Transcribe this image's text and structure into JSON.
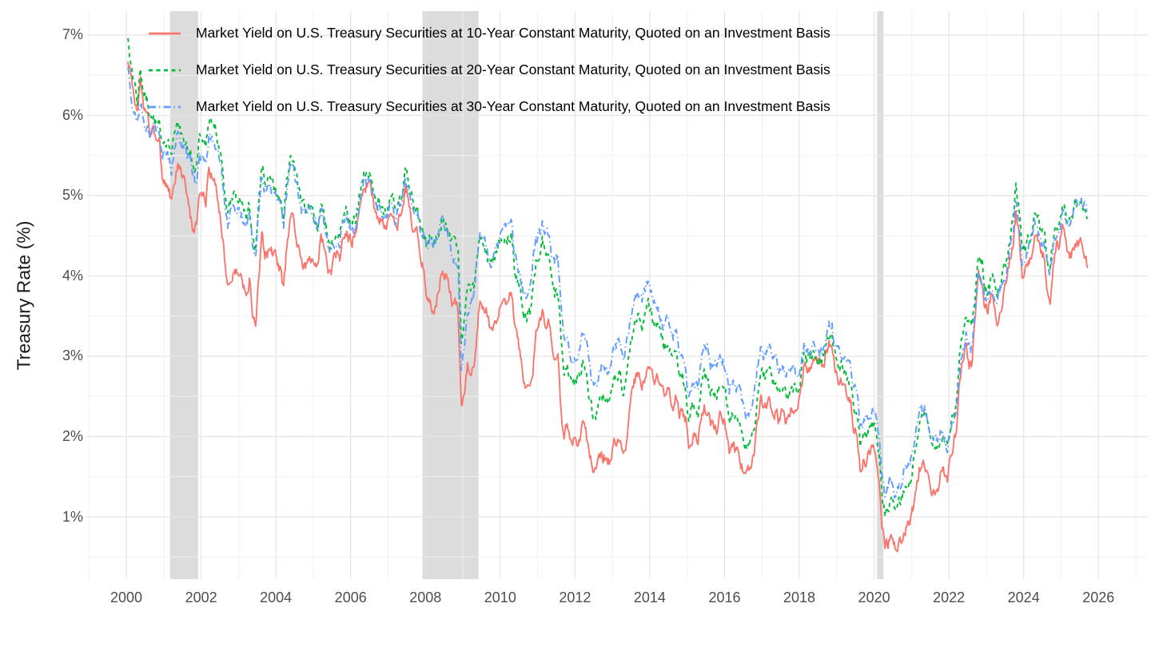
{
  "y_axis": {
    "title": "Treasury Rate (%)",
    "tick_labels": [
      "7%",
      "6%",
      "5%",
      "4%",
      "3%",
      "2%",
      "1%"
    ],
    "tick_values": [
      7,
      6,
      5,
      4,
      3,
      2,
      1
    ],
    "minor_values": [
      6.5,
      5.5,
      4.5,
      3.5,
      2.5,
      1.5,
      0.5
    ],
    "range": [
      0.224,
      7.298
    ]
  },
  "x_axis": {
    "tick_labels": [
      "2000",
      "2002",
      "2004",
      "2006",
      "2008",
      "2010",
      "2012",
      "2014",
      "2016",
      "2018",
      "2020",
      "2022",
      "2024",
      "2026"
    ],
    "tick_values": [
      2000,
      2002,
      2004,
      2006,
      2008,
      2010,
      2012,
      2014,
      2016,
      2018,
      2020,
      2022,
      2024,
      2026
    ],
    "minor_values": [
      1999,
      2001,
      2003,
      2005,
      2007,
      2009,
      2011,
      2013,
      2015,
      2017,
      2019,
      2021,
      2023,
      2025,
      2027
    ],
    "range": [
      1998.93,
      2027.32
    ]
  },
  "recession_bands": [
    {
      "start": 2001.17,
      "end": 2001.92
    },
    {
      "start": 2007.92,
      "end": 2009.42
    },
    {
      "start": 2020.08,
      "end": 2020.25
    }
  ],
  "style": {
    "background": "#ffffff",
    "band_color": "#dcdcdc",
    "grid_major_color": "#e4e4e4",
    "grid_minor_color": "#f0f0f0",
    "tick_label_color": "#4d4d4d",
    "axis_title_color": "#1a1a1a",
    "legend_text_color": "#000000"
  },
  "chart_data": {
    "type": "line",
    "title": "",
    "xlabel": "",
    "ylabel": "Treasury Rate (%)",
    "x_start_year": 2000,
    "x_step_months": 1,
    "x_end_year": 2025.75,
    "ylim": [
      0.224,
      7.298
    ],
    "xlim": [
      1998.93,
      2027.32
    ],
    "grid": "on",
    "legend_position": "top-left-inside",
    "series": [
      {
        "name": "Market Yield on U.S. Treasury Securities at 10-Year Constant Maturity, Quoted on an Investment Basis",
        "color": "#F8766D",
        "linetype": "solid",
        "values": [
          6.66,
          6.52,
          6.26,
          5.99,
          6.44,
          6.1,
          6.05,
          5.83,
          5.8,
          5.74,
          5.72,
          5.24,
          5.16,
          5.1,
          4.89,
          5.14,
          5.39,
          5.28,
          5.24,
          4.97,
          4.73,
          4.57,
          4.65,
          5.09,
          5.04,
          4.91,
          5.28,
          5.21,
          5.16,
          4.93,
          4.65,
          4.26,
          3.87,
          3.94,
          4.05,
          4.03,
          4.05,
          3.9,
          3.81,
          3.96,
          3.57,
          3.33,
          3.98,
          4.45,
          4.27,
          4.29,
          4.3,
          4.27,
          4.15,
          4.08,
          3.83,
          4.35,
          4.72,
          4.73,
          4.5,
          4.28,
          4.13,
          4.1,
          4.19,
          4.23,
          4.22,
          4.17,
          4.5,
          4.34,
          4.14,
          4.0,
          4.18,
          4.26,
          4.2,
          4.46,
          4.54,
          4.47,
          4.42,
          4.57,
          4.72,
          4.99,
          5.11,
          5.11,
          5.09,
          4.88,
          4.72,
          4.73,
          4.6,
          4.56,
          4.76,
          4.72,
          4.56,
          4.69,
          4.75,
          5.1,
          5.0,
          4.67,
          4.52,
          4.53,
          4.15,
          4.1,
          3.74,
          3.74,
          3.51,
          3.68,
          3.88,
          4.1,
          4.01,
          3.89,
          3.69,
          3.81,
          3.53,
          2.42,
          2.52,
          2.87,
          2.82,
          2.93,
          3.29,
          3.72,
          3.56,
          3.59,
          3.4,
          3.39,
          3.4,
          3.59,
          3.73,
          3.69,
          3.73,
          3.85,
          3.42,
          3.2,
          3.01,
          2.7,
          2.65,
          2.54,
          2.76,
          3.29,
          3.39,
          3.58,
          3.41,
          3.46,
          3.17,
          3.0,
          3.0,
          2.3,
          1.98,
          2.15,
          2.01,
          1.98,
          1.97,
          1.97,
          2.17,
          2.05,
          1.8,
          1.62,
          1.53,
          1.68,
          1.72,
          1.75,
          1.65,
          1.72,
          1.91,
          1.98,
          1.96,
          1.76,
          1.93,
          2.3,
          2.58,
          2.74,
          2.81,
          2.62,
          2.72,
          2.9,
          2.86,
          2.71,
          2.72,
          2.71,
          2.56,
          2.6,
          2.54,
          2.42,
          2.53,
          2.3,
          2.33,
          2.21,
          1.88,
          1.98,
          2.04,
          1.94,
          2.2,
          2.36,
          2.32,
          2.17,
          2.17,
          2.07,
          2.26,
          2.24,
          2.09,
          1.78,
          1.89,
          1.81,
          1.81,
          1.64,
          1.5,
          1.56,
          1.63,
          1.76,
          2.14,
          2.49,
          2.43,
          2.42,
          2.48,
          2.3,
          2.3,
          2.19,
          2.32,
          2.21,
          2.2,
          2.36,
          2.35,
          2.4,
          2.58,
          2.86,
          2.84,
          2.87,
          2.98,
          2.91,
          2.89,
          2.89,
          3.0,
          3.15,
          3.12,
          2.83,
          2.71,
          2.68,
          2.57,
          2.53,
          2.4,
          2.07,
          2.06,
          1.63,
          1.7,
          1.71,
          1.81,
          1.86,
          1.76,
          1.5,
          0.87,
          0.66,
          0.67,
          0.73,
          0.62,
          0.65,
          0.68,
          0.79,
          0.87,
          0.93,
          1.08,
          1.26,
          1.61,
          1.64,
          1.62,
          1.52,
          1.32,
          1.28,
          1.37,
          1.58,
          1.56,
          1.47,
          1.76,
          1.93,
          2.13,
          2.75,
          2.9,
          3.14,
          2.9,
          2.9,
          3.52,
          3.98,
          3.89,
          3.62,
          3.53,
          3.75,
          3.66,
          3.46,
          3.57,
          3.75,
          3.9,
          4.17,
          4.38,
          4.8,
          4.5,
          4.02,
          4.06,
          4.21,
          4.21,
          4.54,
          4.48,
          4.31,
          4.25,
          3.87,
          3.72,
          4.1,
          4.36,
          4.39,
          4.63,
          4.45,
          4.28,
          4.28,
          4.42,
          4.38,
          4.39,
          4.26,
          4.12
        ]
      },
      {
        "name": "Market Yield on U.S. Treasury Securities at 20-Year Constant Maturity, Quoted on an Investment Basis",
        "color": "#00BA38",
        "linetype": "dashed",
        "values": [
          6.9,
          6.54,
          6.38,
          6.18,
          6.52,
          6.28,
          6.2,
          6.02,
          5.97,
          5.91,
          5.89,
          5.64,
          5.65,
          5.62,
          5.49,
          5.78,
          5.92,
          5.82,
          5.75,
          5.58,
          5.53,
          5.34,
          5.33,
          5.76,
          5.69,
          5.61,
          5.93,
          5.86,
          5.82,
          5.65,
          5.46,
          5.08,
          4.76,
          4.93,
          4.96,
          4.92,
          4.94,
          4.81,
          4.74,
          4.91,
          4.52,
          4.34,
          4.92,
          5.39,
          5.21,
          5.21,
          5.17,
          5.11,
          4.97,
          4.94,
          4.72,
          5.16,
          5.46,
          5.45,
          5.24,
          5.07,
          4.89,
          4.85,
          4.89,
          4.88,
          4.77,
          4.61,
          4.89,
          4.75,
          4.56,
          4.35,
          4.48,
          4.53,
          4.51,
          4.74,
          4.83,
          4.73,
          4.65,
          4.73,
          4.91,
          5.22,
          5.35,
          5.29,
          5.25,
          5.08,
          4.93,
          4.94,
          4.78,
          4.78,
          4.95,
          4.93,
          4.81,
          4.95,
          4.98,
          5.29,
          5.19,
          5.0,
          4.84,
          4.83,
          4.56,
          4.57,
          4.35,
          4.49,
          4.36,
          4.44,
          4.6,
          4.74,
          4.62,
          4.53,
          4.43,
          4.45,
          4.27,
          3.18,
          3.46,
          3.83,
          3.78,
          3.84,
          4.22,
          4.51,
          4.38,
          4.33,
          4.14,
          4.16,
          4.24,
          4.4,
          4.5,
          4.48,
          4.49,
          4.53,
          4.11,
          3.95,
          3.8,
          3.52,
          3.47,
          3.52,
          3.82,
          4.17,
          4.28,
          4.42,
          4.27,
          4.28,
          3.91,
          3.78,
          3.8,
          3.24,
          2.83,
          2.87,
          2.72,
          2.67,
          2.7,
          2.75,
          2.94,
          2.82,
          2.53,
          2.31,
          2.22,
          2.4,
          2.49,
          2.51,
          2.39,
          2.47,
          2.68,
          2.78,
          2.78,
          2.55,
          2.73,
          3.07,
          3.31,
          3.49,
          3.53,
          3.38,
          3.5,
          3.63,
          3.52,
          3.38,
          3.35,
          3.27,
          3.12,
          3.15,
          3.07,
          2.94,
          3.01,
          2.77,
          2.76,
          2.55,
          2.2,
          2.34,
          2.41,
          2.31,
          2.6,
          2.76,
          2.71,
          2.55,
          2.58,
          2.5,
          2.69,
          2.67,
          2.49,
          2.2,
          2.28,
          2.21,
          2.22,
          2.02,
          1.82,
          1.89,
          1.97,
          2.1,
          2.5,
          2.84,
          2.75,
          2.76,
          2.83,
          2.67,
          2.7,
          2.59,
          2.65,
          2.55,
          2.53,
          2.65,
          2.6,
          2.58,
          2.74,
          2.98,
          2.93,
          2.96,
          3.04,
          2.98,
          2.95,
          2.95,
          3.07,
          3.24,
          3.26,
          2.98,
          2.87,
          2.87,
          2.78,
          2.76,
          2.64,
          2.33,
          2.34,
          1.9,
          1.99,
          2.02,
          2.12,
          2.18,
          2.07,
          1.81,
          1.24,
          1.05,
          1.1,
          1.26,
          1.06,
          1.12,
          1.21,
          1.36,
          1.4,
          1.45,
          1.66,
          1.86,
          2.2,
          2.23,
          2.23,
          2.11,
          1.89,
          1.84,
          1.88,
          2.01,
          1.97,
          1.88,
          2.15,
          2.3,
          2.49,
          3.02,
          3.28,
          3.52,
          3.38,
          3.36,
          3.79,
          4.26,
          4.2,
          3.88,
          3.77,
          3.94,
          3.93,
          3.8,
          3.92,
          4.06,
          4.18,
          4.46,
          4.65,
          5.13,
          4.85,
          4.35,
          4.37,
          4.48,
          4.45,
          4.77,
          4.72,
          4.55,
          4.55,
          4.24,
          4.09,
          4.44,
          4.62,
          4.66,
          4.88,
          4.72,
          4.62,
          4.71,
          4.91,
          4.92,
          4.94,
          4.86,
          4.71
        ]
      },
      {
        "name": "Market Yield on U.S. Treasury Securities at 30-Year Constant Maturity, Quoted on an Investment Basis",
        "color": "#619CFF",
        "linetype": "dotdash",
        "values": [
          6.63,
          6.23,
          6.05,
          5.85,
          6.15,
          5.93,
          5.85,
          5.72,
          5.83,
          5.8,
          5.78,
          5.49,
          5.54,
          5.45,
          5.34,
          5.65,
          5.78,
          5.67,
          5.61,
          5.48,
          5.48,
          5.32,
          5.12,
          5.48,
          5.45,
          5.4,
          5.75,
          5.7,
          5.65,
          5.5,
          5.3,
          4.95,
          4.65,
          4.8,
          4.85,
          4.8,
          4.85,
          4.7,
          4.65,
          4.8,
          4.4,
          4.25,
          4.8,
          5.25,
          5.1,
          5.1,
          5.05,
          5.0,
          4.9,
          4.85,
          4.65,
          5.05,
          5.35,
          5.35,
          5.15,
          5.0,
          4.8,
          4.78,
          4.82,
          4.8,
          4.7,
          4.55,
          4.8,
          4.65,
          4.45,
          4.25,
          4.4,
          4.45,
          4.42,
          4.65,
          4.73,
          4.63,
          4.55,
          4.58,
          4.73,
          5.06,
          5.2,
          5.15,
          5.13,
          5.0,
          4.85,
          4.85,
          4.69,
          4.68,
          4.85,
          4.82,
          4.72,
          4.87,
          4.9,
          5.2,
          5.11,
          4.93,
          4.79,
          4.77,
          4.52,
          4.53,
          4.33,
          4.52,
          4.39,
          4.44,
          4.6,
          4.69,
          4.57,
          4.5,
          4.27,
          4.17,
          4.0,
          2.87,
          3.13,
          3.59,
          3.64,
          3.76,
          4.23,
          4.52,
          4.41,
          4.37,
          4.19,
          4.19,
          4.31,
          4.49,
          4.6,
          4.62,
          4.64,
          4.69,
          4.29,
          4.13,
          3.99,
          3.8,
          3.77,
          3.87,
          4.19,
          4.42,
          4.52,
          4.65,
          4.51,
          4.5,
          4.29,
          4.23,
          4.27,
          3.65,
          3.18,
          3.13,
          3.02,
          2.98,
          3.03,
          3.11,
          3.28,
          3.18,
          2.93,
          2.7,
          2.59,
          2.77,
          2.88,
          2.9,
          2.8,
          2.88,
          3.08,
          3.17,
          3.16,
          2.93,
          3.11,
          3.4,
          3.61,
          3.76,
          3.79,
          3.68,
          3.8,
          3.89,
          3.77,
          3.66,
          3.62,
          3.52,
          3.39,
          3.42,
          3.33,
          3.2,
          3.26,
          3.04,
          3.04,
          2.83,
          2.46,
          2.57,
          2.63,
          2.59,
          2.96,
          3.11,
          3.07,
          2.86,
          2.95,
          2.89,
          3.03,
          2.97,
          2.86,
          2.62,
          2.68,
          2.62,
          2.63,
          2.45,
          2.23,
          2.26,
          2.35,
          2.5,
          2.86,
          3.11,
          3.02,
          3.03,
          3.08,
          2.94,
          2.96,
          2.8,
          2.88,
          2.8,
          2.78,
          2.88,
          2.8,
          2.77,
          2.88,
          3.13,
          3.09,
          3.07,
          3.13,
          3.05,
          3.01,
          3.04,
          3.15,
          3.34,
          3.36,
          3.1,
          3.04,
          3.02,
          2.98,
          2.94,
          2.82,
          2.57,
          2.57,
          2.12,
          2.16,
          2.19,
          2.28,
          2.3,
          2.22,
          1.97,
          1.46,
          1.27,
          1.38,
          1.49,
          1.31,
          1.36,
          1.42,
          1.57,
          1.62,
          1.67,
          1.82,
          2.04,
          2.34,
          2.3,
          2.32,
          2.16,
          1.94,
          1.92,
          1.94,
          2.06,
          1.94,
          1.85,
          2.1,
          2.25,
          2.41,
          2.81,
          3.07,
          3.25,
          3.1,
          3.13,
          3.56,
          4.04,
          3.92,
          3.66,
          3.66,
          3.85,
          3.77,
          3.68,
          3.86,
          3.87,
          3.95,
          4.28,
          4.47,
          4.95,
          4.66,
          4.14,
          4.26,
          4.38,
          4.36,
          4.66,
          4.6,
          4.44,
          4.45,
          4.15,
          4.04,
          4.38,
          4.54,
          4.58,
          4.85,
          4.68,
          4.62,
          4.73,
          4.92,
          4.89,
          4.93,
          4.88,
          4.73
        ]
      }
    ]
  }
}
